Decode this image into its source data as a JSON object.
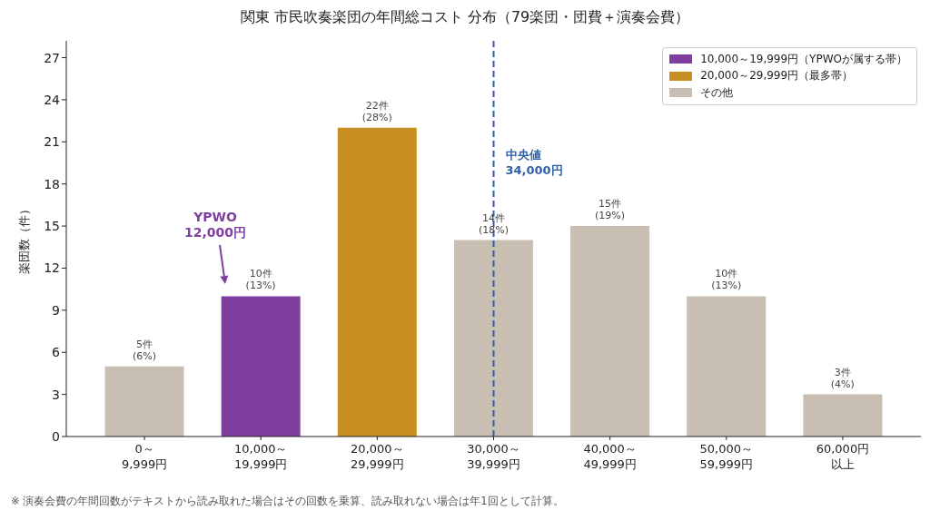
{
  "chart_data": {
    "type": "bar",
    "title": "関東 市民吹奏楽団の年間総コスト 分布（79楽団・団費＋演奏会費）",
    "ylabel": "楽団数（件）",
    "categories": [
      "0～9,999円",
      "10,000～19,999円",
      "20,000～29,999円",
      "30,000～39,999円",
      "40,000～49,999円",
      "50,000～59,999円",
      "60,000円以上"
    ],
    "ylim": [
      0,
      28.2
    ],
    "yticks": [
      0,
      3,
      6,
      9,
      12,
      15,
      18,
      21,
      24,
      27
    ],
    "stacked": true,
    "series": [
      {
        "name": "10,000～19,999円（YPWOが属する帯）",
        "color": "#7e3f9e",
        "values": [
          null,
          10,
          null,
          null,
          null,
          null,
          null
        ],
        "value_labels": [
          null,
          "10件\n(13%)",
          null,
          null,
          null,
          null,
          null
        ]
      },
      {
        "name": "20,000～29,999円（最多帯）",
        "color": "#c78f22",
        "values": [
          null,
          null,
          22,
          null,
          null,
          null,
          null
        ],
        "value_labels": [
          null,
          null,
          "22件\n(28%)",
          null,
          null,
          null,
          null
        ]
      },
      {
        "name": "その他",
        "color": "#c8bfb2",
        "values": [
          5,
          null,
          null,
          14,
          15,
          10,
          3
        ],
        "value_labels": [
          "5件\n(6%)",
          null,
          null,
          "14件\n(18%)",
          "15件\n(19%)",
          "10件\n(13%)",
          "3件\n(4%)"
        ]
      }
    ],
    "ref_lines": [
      {
        "axis": "x",
        "value": "30,000～39,999円",
        "label": "中央値\n34,000円",
        "color": "#2e5fa8",
        "line_style": "dashed"
      }
    ],
    "annotations": [
      "YPWO\n12,000円",
      "※ 演奏会費の年間回数がテキストから読み取れた場合はその回数を乗算、読み取れない場合は年1回として計算。"
    ],
    "legend": "top right"
  }
}
